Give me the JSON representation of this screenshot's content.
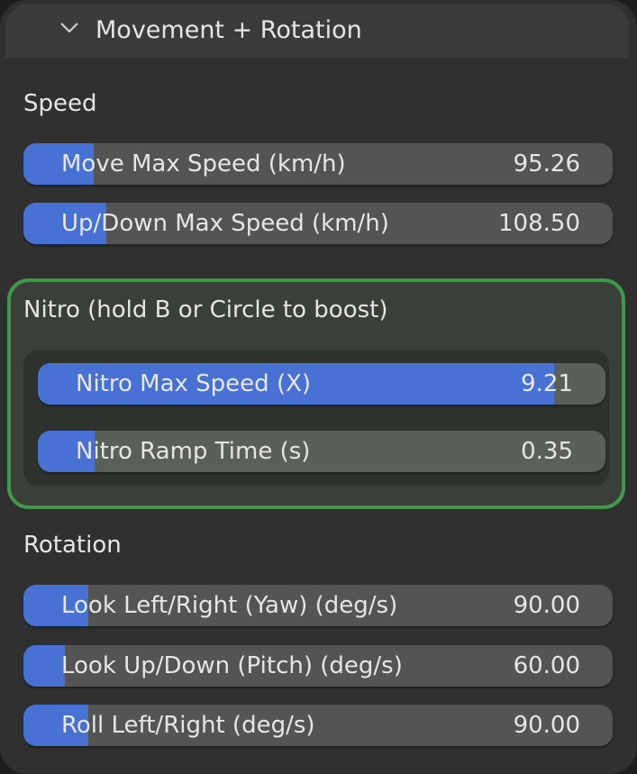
{
  "panel": {
    "title": "Movement + Rotation",
    "chevron_icon": "chevron-down-icon"
  },
  "speed": {
    "label": "Speed",
    "sliders": [
      {
        "label": "Move Max Speed (km/h)",
        "value": "95.26",
        "fill_fraction": 0.12
      },
      {
        "label": "Up/Down Max Speed (km/h)",
        "value": "108.50",
        "fill_fraction": 0.14
      }
    ]
  },
  "nitro": {
    "label": "Nitro (hold B or Circle to boost)",
    "border_color": "#40994a",
    "sliders": [
      {
        "label": "Nitro Max Speed (X)",
        "value": "9.21",
        "fill_fraction": 0.91
      },
      {
        "label": "Nitro Ramp Time (s)",
        "value": "0.35",
        "fill_fraction": 0.1
      }
    ]
  },
  "rotation": {
    "label": "Rotation",
    "sliders": [
      {
        "label": "Look Left/Right (Yaw) (deg/s)",
        "value": "90.00",
        "fill_fraction": 0.11
      },
      {
        "label": "Look Up/Down (Pitch) (deg/s)",
        "value": "60.00",
        "fill_fraction": 0.07
      },
      {
        "label": "Roll Left/Right (deg/s)",
        "value": "90.00",
        "fill_fraction": 0.11
      }
    ]
  },
  "colors": {
    "accent": "#4772d3",
    "slider_bg": "#545454",
    "panel_bg": "#303030"
  }
}
